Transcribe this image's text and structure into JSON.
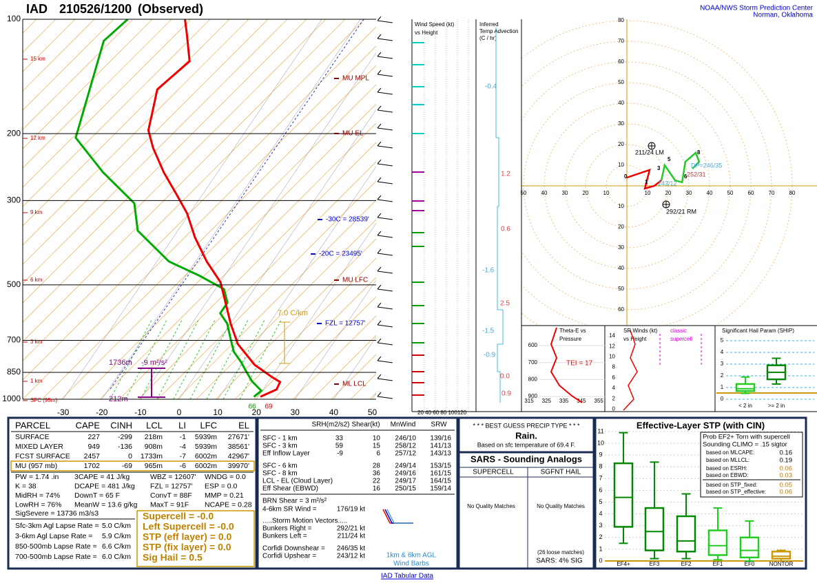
{
  "header": {
    "station": "IAD",
    "time": "210526/1200",
    "status": "(Observed)",
    "center": "NOAA/NWS Storm Prediction Center",
    "location": "Norman, Oklahoma"
  },
  "skewt": {
    "pressures": [
      100,
      200,
      300,
      500,
      700,
      850,
      1000
    ],
    "temps": [
      -30,
      -20,
      -10,
      0,
      10,
      20,
      30,
      40,
      50
    ],
    "heights": [
      "15 km",
      "12 km",
      "9 km",
      "6 km",
      "3 km",
      "1 km",
      "SFC (95m)"
    ],
    "levels": [
      "MU MPL",
      "MU EL",
      "-30C = 28539'",
      "-20C = 23495'",
      "MU LFC",
      "FZL = 12757'",
      "ML LCL"
    ],
    "lapse": "7.0 C/km",
    "eff_top": "1736m",
    "eff_srh": "-9 m²/s²",
    "eff_bot": "212m",
    "td_sfc": "66",
    "t_sfc": "69",
    "t_profile": {
      "p": [
        985,
        943,
        901,
        875,
        812,
        716,
        632,
        492,
        434,
        375,
        324,
        286,
        253,
        218,
        196,
        170,
        153,
        129,
        110,
        100
      ],
      "t": [
        20.6,
        23.5,
        23.1,
        20.2,
        13.5,
        5.5,
        0,
        -9.9,
        -17.1,
        -24.4,
        -30.7,
        -37.3,
        -43.9,
        -51,
        -55.3,
        -58.1,
        -60.2,
        -56.8,
        -62.1,
        -65.4
      ]
    },
    "td_profile": {
      "p": [
        985,
        950,
        897,
        847,
        797,
        750,
        690,
        632,
        594,
        557,
        513,
        473,
        434,
        360,
        305,
        253,
        205,
        114,
        100
      ],
      "td": [
        18.9,
        19.8,
        15.7,
        12.6,
        9.4,
        5.8,
        2.5,
        -0.9,
        -4.5,
        -4.5,
        -7.8,
        -16.5,
        -26.9,
        -40.4,
        -46.1,
        -59.6,
        -72.8,
        -82.6,
        -80.2
      ]
    }
  },
  "wind_panel": {
    "title": [
      "Wind Speed (kt)",
      "vs Height"
    ],
    "axis": "20 40 60 80 100120"
  },
  "advection": {
    "title": [
      "Inferred",
      "Temp Advection",
      "(C / hr)"
    ],
    "values": [
      "-0.4",
      "1.2",
      "0.6",
      "-1.6",
      "2.5",
      "-1.5",
      "-0.9",
      "0.0",
      "0.9"
    ]
  },
  "hodograph": {
    "rings": [
      10,
      20,
      30,
      40,
      50,
      60,
      70,
      80
    ],
    "u": [
      0,
      11,
      8.7,
      13.3,
      16.7,
      18.3,
      23.3,
      26.7,
      28.3,
      33.3,
      35,
      31.7
    ],
    "v": [
      4,
      7.7,
      -1.3,
      0,
      2.7,
      10,
      2.7,
      1.7,
      11.7,
      16,
      11.7,
      8.3
    ],
    "lm": "211/24 LM",
    "rm": "292/21 RM",
    "dp": "DP=246/35",
    "mean": "252/31",
    "up": "243/12",
    "km": [
      "0",
      "1",
      "3",
      "5",
      "6",
      "8"
    ]
  },
  "theta_e": {
    "title": [
      "Theta-E vs",
      "Pressure"
    ],
    "pressures": [
      600,
      700,
      800,
      900
    ],
    "temps": [
      315,
      325,
      335,
      345,
      355
    ],
    "tei": "TEI = 17"
  },
  "sr_winds": {
    "title": [
      "SR Winds (kt)",
      "vs Height"
    ],
    "heights": [
      14,
      12,
      10,
      8,
      6,
      4,
      2,
      0
    ],
    "note": [
      "classic",
      "supercell"
    ]
  },
  "ship": {
    "title": "Significant Hail Param (SHIP)",
    "ticks": [
      0,
      1,
      2,
      3,
      4,
      5
    ],
    "cats": [
      "< 2 in",
      ">= 2 in"
    ],
    "boxes": [
      {
        "min": 0.5,
        "q1": 0.7,
        "med": 0.9,
        "q3": 1.3,
        "max": 1.9
      },
      {
        "min": 1.3,
        "q1": 1.7,
        "med": 2.3,
        "q3": 2.9,
        "max": 3.5
      }
    ]
  },
  "parcel": {
    "headers": [
      "PARCEL",
      "CAPE",
      "CINH",
      "LCL",
      "LI",
      "LFC",
      "EL"
    ],
    "rows": [
      [
        "SURFACE",
        "227",
        "-299",
        "218m",
        "-1",
        "5939m",
        "27671'"
      ],
      [
        "MIXED LAYER",
        "949",
        "-136",
        "908m",
        "-4",
        "5939m",
        "38561'"
      ],
      [
        "FCST SURFACE",
        "2457",
        "0",
        "1733m",
        "-7",
        "6002m",
        "42967'"
      ],
      [
        "MU  (957 mb)",
        "1702",
        "-69",
        "965m",
        "-6",
        "6002m",
        "39970'"
      ]
    ]
  },
  "indices": [
    [
      "PW = 1.74 .in",
      "3CAPE = 41 J/kg",
      "WBZ = 12607'",
      "WNDG = 0.0"
    ],
    [
      "K = 38",
      "DCAPE = 481 J/kg",
      "FZL = 12757'",
      "ESP = 0.0"
    ],
    [
      "MidRH = 74%",
      "DownT = 65 F",
      "ConvT = 88F",
      "MMP = 0.21"
    ],
    [
      "LowRH = 76%",
      "MeanW = 13.6 g/kg",
      "MaxT = 91F",
      "NCAPE = 0.28"
    ]
  ],
  "sig_severe": "SigSevere = 13736 m3/s3",
  "lapse_rates": [
    [
      "Sfc-3km Agl Lapse Rate =",
      "5.0 C/km"
    ],
    [
      "3-6km Agl Lapse Rate =",
      "5.9 C/km"
    ],
    [
      "850-500mb Lapse Rate =",
      "6.6 C/km"
    ],
    [
      "700-500mb Lapse Rate =",
      "6.0 C/km"
    ]
  ],
  "composites": [
    "Supercell = -0.0",
    "Left Supercell = -0.0",
    "STP (eff layer) = 0.0",
    "STP (fix layer) = 0.0",
    "Sig Hail = 0.5"
  ],
  "kinematics": {
    "headers": [
      "SRH(m2/s2)",
      "Shear(kt)",
      "MnWind",
      "SRW"
    ],
    "rows": [
      {
        "label": "SFC - 1 km",
        "srh": "33",
        "shear": "10",
        "mnwind": "246/10",
        "srw": "139/16"
      },
      {
        "label": "SFC - 3 km",
        "srh": "59",
        "shear": "15",
        "mnwind": "258/12",
        "srw": "141/13"
      },
      {
        "label": "Eff Inflow Layer",
        "srh": "-9",
        "shear": "6",
        "mnwind": "257/12",
        "srw": "143/13"
      },
      {
        "label": "SFC - 6 km",
        "shear": "28",
        "mnwind": "249/14",
        "srw": "153/15"
      },
      {
        "label": "SFC - 8 km",
        "shear": "36",
        "mnwind": "249/16",
        "srw": "161/15"
      },
      {
        "label": "LCL - EL (Cloud Layer)",
        "shear": "22",
        "mnwind": "249/17",
        "srw": "164/15"
      },
      {
        "label": "Eff Shear (EBWD)",
        "shear": "16",
        "mnwind": "250/15",
        "srw": "159/14"
      }
    ],
    "brn": "BRN Shear = 3 m²/s²",
    "sr46": "4-6km SR Wind =",
    "sr46v": "176/19 kt",
    "motion_title": ".....Storm Motion Vectors.....",
    "motions": [
      [
        "Bunkers Right =",
        "292/21 kt"
      ],
      [
        "Bunkers Left =",
        "211/24 kt"
      ],
      [
        "Corfidi Downshear =",
        "246/35 kt"
      ],
      [
        "Corfidi Upshear =",
        "243/12 kt"
      ]
    ],
    "barb_note": [
      "1km & 6km AGL",
      "Wind Barbs"
    ]
  },
  "precip": {
    "title": "* * * BEST GUESS PRECIP TYPE * * *",
    "type": "Rain.",
    "basis": "Based on sfc temperature of 69.4 F."
  },
  "sars": {
    "title": "SARS - Sounding Analogs",
    "cols": [
      "SUPERCELL",
      "SGFNT HAIL"
    ],
    "matches": [
      "No Quality Matches",
      "No Quality Matches"
    ],
    "loose": "(26 loose matches)",
    "sig": "SARS:  4% SIG"
  },
  "stp": {
    "title": "Effective-Layer STP (with CIN)",
    "ticks": [
      0,
      1,
      2,
      3,
      4,
      5,
      6,
      7,
      8,
      9,
      10,
      11
    ],
    "cats": [
      "EF4+",
      "EF3",
      "EF2",
      "EF1",
      "EF0",
      "NONTOR"
    ],
    "boxes": [
      {
        "min": 1.5,
        "q1": 2.9,
        "med": 5.4,
        "q3": 8.3,
        "max": 10.9
      },
      {
        "min": 0.2,
        "q1": 0.9,
        "med": 2.5,
        "q3": 4.5,
        "max": 8.4
      },
      {
        "min": 0.2,
        "q1": 0.8,
        "med": 1.7,
        "q3": 3.8,
        "max": 5.7
      },
      {
        "min": 0.1,
        "q1": 0.5,
        "med": 1.3,
        "q3": 2.6,
        "max": 4.5
      },
      {
        "min": 0,
        "q1": 0.3,
        "med": 0.9,
        "q3": 2.0,
        "max": 3.4
      },
      {
        "min": 0,
        "q1": 0.2,
        "med": 0.4,
        "q3": 0.8,
        "max": 0.9
      }
    ],
    "prob": [
      "Prob EF2+ Torn with supercell",
      "Sounding  CLIMO = .15 sigtor"
    ],
    "based": [
      [
        "based on MLCAPE:",
        "0.16"
      ],
      [
        "based on MLLCL:",
        "0.19"
      ],
      [
        "based on ESRH:",
        "0.06"
      ],
      [
        "based on EBWD:",
        "0.03"
      ],
      [
        "based on STP_fixed:",
        "0.05"
      ],
      [
        "based on STP_effective:",
        "0.06"
      ]
    ]
  },
  "footer": "IAD Tabular Data"
}
